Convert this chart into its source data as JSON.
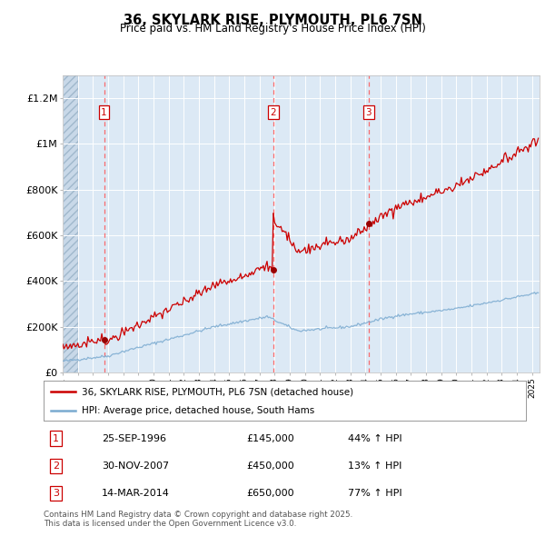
{
  "title": "36, SKYLARK RISE, PLYMOUTH, PL6 7SN",
  "subtitle": "Price paid vs. HM Land Registry's House Price Index (HPI)",
  "background_color": "#dce9f5",
  "hatch_color": "#c8d8e8",
  "ylabel_ticks": [
    "£0",
    "£200K",
    "£400K",
    "£600K",
    "£800K",
    "£1M",
    "£1.2M"
  ],
  "ytick_vals": [
    0,
    200000,
    400000,
    600000,
    800000,
    1000000,
    1200000
  ],
  "ylim": [
    0,
    1300000
  ],
  "xlim_start": 1994.0,
  "xlim_end": 2025.5,
  "sale_dates": [
    1996.73,
    2007.92,
    2014.21
  ],
  "sale_prices": [
    145000,
    450000,
    650000
  ],
  "sale_labels": [
    "1",
    "2",
    "3"
  ],
  "sale_info": [
    {
      "num": "1",
      "date": "25-SEP-1996",
      "price": "£145,000",
      "hpi": "44% ↑ HPI"
    },
    {
      "num": "2",
      "date": "30-NOV-2007",
      "price": "£450,000",
      "hpi": "13% ↑ HPI"
    },
    {
      "num": "3",
      "date": "14-MAR-2014",
      "price": "£650,000",
      "hpi": "77% ↑ HPI"
    }
  ],
  "legend_line1": "36, SKYLARK RISE, PLYMOUTH, PL6 7SN (detached house)",
  "legend_line2": "HPI: Average price, detached house, South Hams",
  "footer": "Contains HM Land Registry data © Crown copyright and database right 2025.\nThis data is licensed under the Open Government Licence v3.0.",
  "red_line_color": "#cc0000",
  "blue_line_color": "#7aaad0",
  "dot_color": "#990000"
}
